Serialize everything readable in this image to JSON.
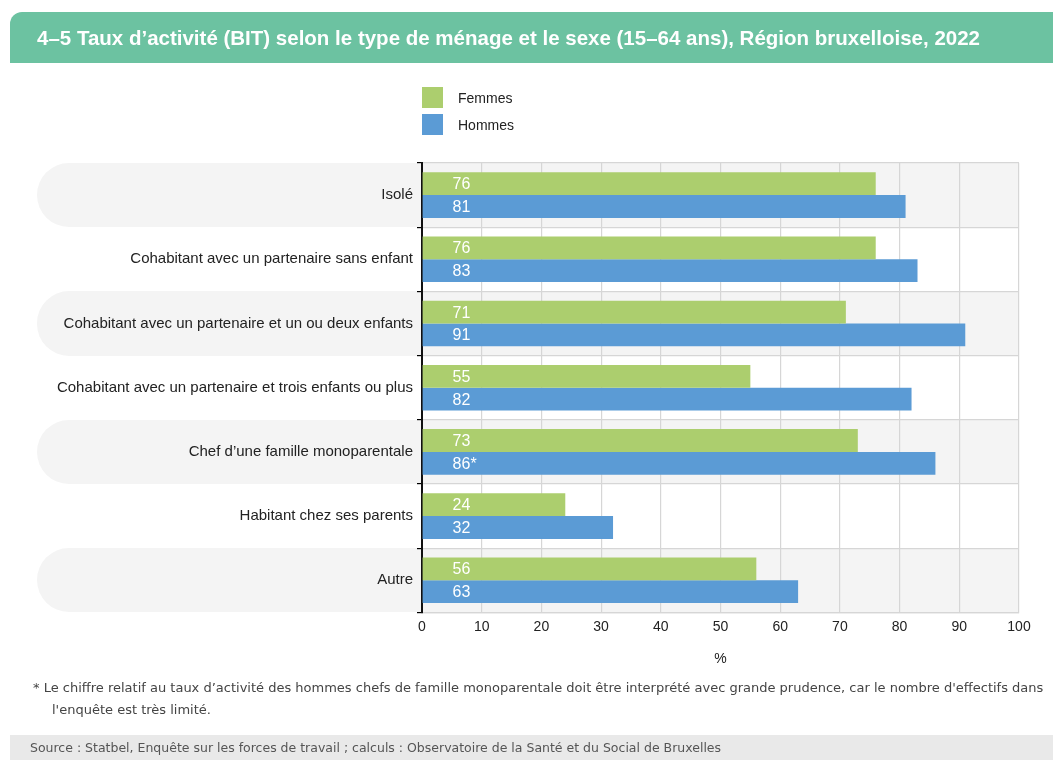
{
  "chart_data": {
    "type": "bar",
    "orientation": "horizontal",
    "title": "4–5 Taux d’activité (BIT) selon le type de ménage et le sexe (15–64 ans), Région bruxelloise, 2022",
    "categories": [
      "Isolé",
      "Cohabitant avec un partenaire sans enfant",
      "Cohabitant avec un partenaire et un ou deux enfants",
      "Cohabitant avec un partenaire et trois enfants ou plus",
      "Chef d’une famille monoparentale",
      "Habitant chez ses parents",
      "Autre"
    ],
    "series": [
      {
        "name": "Femmes",
        "color": "#acce6e",
        "values": [
          76,
          76,
          71,
          55,
          73,
          24,
          56
        ],
        "value_labels": [
          "76",
          "76",
          "71",
          "55",
          "73",
          "24",
          "56"
        ]
      },
      {
        "name": "Hommes",
        "color": "#5b9bd5",
        "values": [
          81,
          83,
          91,
          82,
          86,
          32,
          63
        ],
        "value_labels": [
          "81",
          "83",
          "91",
          "82",
          "86*",
          "32",
          "63"
        ]
      }
    ],
    "xlabel": "%",
    "xlim": [
      0,
      100
    ],
    "xticks": [
      0,
      10,
      20,
      30,
      40,
      50,
      60,
      70,
      80,
      90,
      100
    ],
    "grid": true,
    "legend": "top left",
    "annotations": [
      "* Le chiffre relatif au taux d’activité des hommes chefs de famille monoparentale doit être interprété avec grande prudence, car le nombre d'effectifs dans l'enquête est très limité.",
      "Source : Statbel, Enquête sur les forces de travail ; calculs : Observatoire de la Santé et du Social de Bruxelles"
    ]
  }
}
